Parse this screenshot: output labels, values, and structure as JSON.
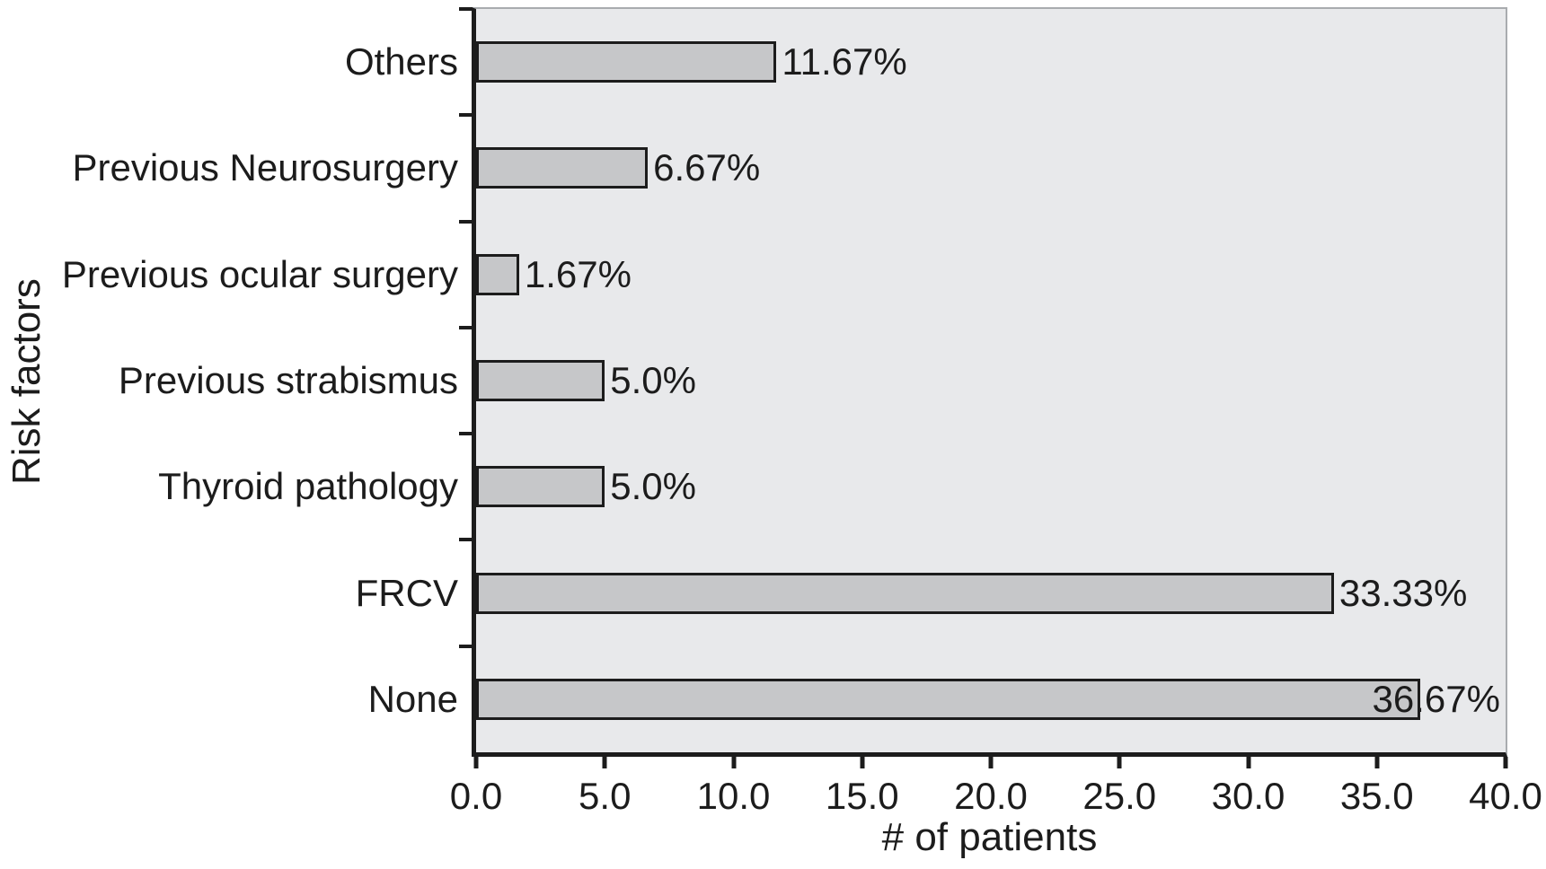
{
  "chart_data": {
    "type": "bar",
    "orientation": "horizontal",
    "title": "",
    "xlabel": "# of patients",
    "ylabel": "Risk factors",
    "categories": [
      "Others",
      "Previous Neurosurgery",
      "Previous ocular surgery",
      "Previous strabismus",
      "Thyroid pathology",
      "FRCV",
      "None"
    ],
    "values": [
      11.67,
      6.67,
      1.67,
      5.0,
      5.0,
      33.33,
      36.67
    ],
    "value_labels": [
      "11.67%",
      "6.67%",
      "1.67%",
      "5.0%",
      "5.0%",
      "33.33%",
      "36.67%"
    ],
    "xlim": [
      0,
      40
    ],
    "x_ticks": [
      "0.0",
      "5.0",
      "10.0",
      "15.0",
      "20.0",
      "25.0",
      "30.0",
      "35.0",
      "40.0"
    ],
    "grid": false,
    "legend": false,
    "colors": {
      "plot_background": "#e8e9eb",
      "bar_fill": "#c6c7c9",
      "bar_border": "#1c1c1c",
      "axis": "#1c1c1c",
      "plot_border": "#a9acaf",
      "text": "#1c1c1c",
      "page_background": "#ffffff"
    }
  }
}
